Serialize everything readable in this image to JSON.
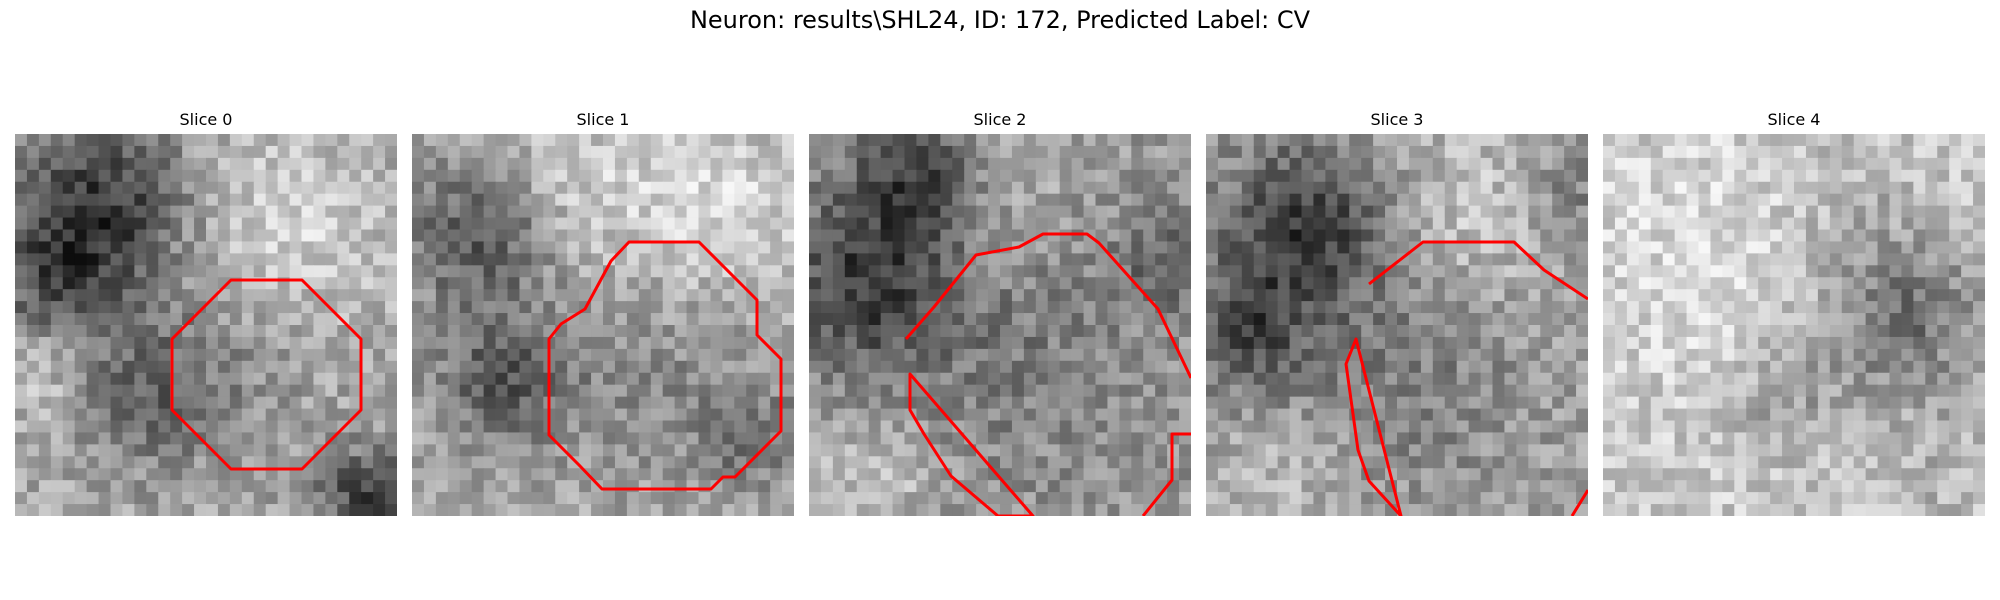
{
  "figure": {
    "title": "Neuron: results\\SHL24, ID: 172, Predicted Label: CV",
    "contour_color": "#ff0000"
  },
  "slices": [
    {
      "title": "Slice 0",
      "has_contour": true
    },
    {
      "title": "Slice 1",
      "has_contour": true
    },
    {
      "title": "Slice 2",
      "has_contour": true
    },
    {
      "title": "Slice 3",
      "has_contour": true
    },
    {
      "title": "Slice 4",
      "has_contour": false
    }
  ]
}
